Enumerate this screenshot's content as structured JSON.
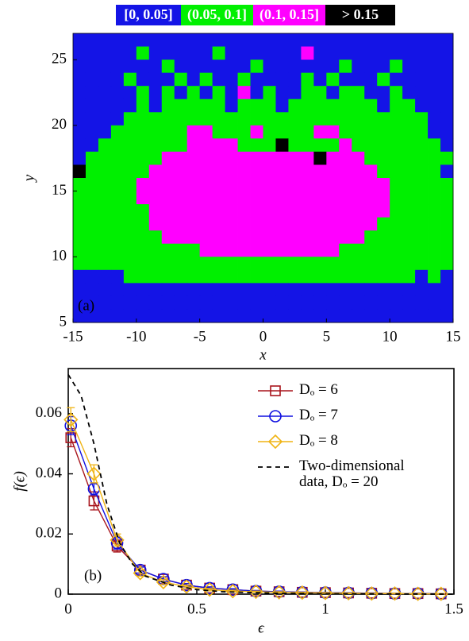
{
  "chart_data": [
    {
      "type": "heatmap",
      "classes": [
        "[0, 0.05]",
        "(0.05, 0.1]",
        "(0.1, 0.15]",
        "> 0.15"
      ],
      "colors": [
        "#1414e6",
        "#00f000",
        "#ff00ff",
        "#000000"
      ],
      "xlabel": "x",
      "ylabel": "y",
      "annotation": "(a)",
      "xlim": [
        -15,
        15
      ],
      "ylim": [
        5,
        27
      ],
      "xticks": [
        -15,
        -10,
        -5,
        0,
        5,
        10,
        15
      ],
      "yticks": [
        5,
        10,
        15,
        20,
        25
      ],
      "z": [
        [
          0,
          0,
          0,
          0,
          0,
          0,
          0,
          0,
          0,
          0,
          0,
          0,
          0,
          0,
          0,
          0,
          0,
          0,
          0,
          0,
          0,
          0,
          0,
          0,
          0,
          0,
          0,
          0,
          0,
          0
        ],
        [
          0,
          0,
          0,
          0,
          0,
          1,
          0,
          0,
          0,
          0,
          0,
          1,
          0,
          0,
          0,
          0,
          0,
          0,
          2,
          0,
          0,
          0,
          0,
          0,
          0,
          0,
          0,
          0,
          0,
          0
        ],
        [
          0,
          0,
          0,
          0,
          0,
          0,
          0,
          1,
          0,
          0,
          0,
          0,
          0,
          0,
          1,
          0,
          0,
          0,
          0,
          0,
          0,
          1,
          0,
          0,
          0,
          1,
          0,
          0,
          0,
          0
        ],
        [
          0,
          0,
          0,
          0,
          1,
          0,
          0,
          0,
          1,
          0,
          1,
          0,
          0,
          1,
          0,
          0,
          0,
          0,
          1,
          0,
          1,
          0,
          0,
          0,
          1,
          0,
          0,
          0,
          0,
          0
        ],
        [
          0,
          0,
          0,
          0,
          0,
          1,
          0,
          1,
          0,
          1,
          0,
          1,
          0,
          2,
          0,
          1,
          0,
          0,
          1,
          1,
          0,
          1,
          1,
          0,
          0,
          1,
          0,
          0,
          0,
          0
        ],
        [
          0,
          0,
          0,
          0,
          0,
          1,
          0,
          1,
          1,
          1,
          1,
          1,
          0,
          1,
          1,
          1,
          0,
          1,
          1,
          1,
          1,
          1,
          1,
          1,
          0,
          1,
          1,
          0,
          0,
          0
        ],
        [
          0,
          0,
          0,
          0,
          1,
          1,
          1,
          1,
          1,
          1,
          1,
          1,
          1,
          1,
          1,
          1,
          1,
          1,
          1,
          1,
          1,
          1,
          1,
          1,
          1,
          1,
          1,
          1,
          0,
          0
        ],
        [
          0,
          0,
          0,
          1,
          1,
          1,
          1,
          1,
          1,
          2,
          2,
          1,
          1,
          1,
          2,
          1,
          1,
          1,
          1,
          2,
          2,
          1,
          1,
          1,
          1,
          1,
          1,
          1,
          0,
          0
        ],
        [
          0,
          0,
          1,
          1,
          1,
          1,
          1,
          1,
          1,
          2,
          2,
          2,
          2,
          1,
          1,
          1,
          3,
          1,
          1,
          1,
          1,
          2,
          1,
          1,
          1,
          1,
          1,
          1,
          1,
          0
        ],
        [
          0,
          1,
          1,
          1,
          1,
          1,
          1,
          2,
          2,
          2,
          2,
          2,
          2,
          2,
          2,
          2,
          2,
          2,
          2,
          3,
          2,
          2,
          2,
          1,
          1,
          1,
          1,
          1,
          1,
          1
        ],
        [
          3,
          1,
          1,
          1,
          1,
          1,
          2,
          2,
          2,
          2,
          2,
          2,
          2,
          2,
          2,
          2,
          2,
          2,
          2,
          2,
          2,
          2,
          2,
          2,
          1,
          1,
          1,
          1,
          1,
          0
        ],
        [
          1,
          1,
          1,
          1,
          1,
          2,
          2,
          2,
          2,
          2,
          2,
          2,
          2,
          2,
          2,
          2,
          2,
          2,
          2,
          2,
          2,
          2,
          2,
          2,
          2,
          1,
          1,
          1,
          1,
          1
        ],
        [
          1,
          1,
          1,
          1,
          1,
          2,
          2,
          2,
          2,
          2,
          2,
          2,
          2,
          2,
          2,
          2,
          2,
          2,
          2,
          2,
          2,
          2,
          2,
          2,
          2,
          1,
          1,
          1,
          1,
          1
        ],
        [
          1,
          1,
          1,
          1,
          1,
          1,
          2,
          2,
          2,
          2,
          2,
          2,
          2,
          2,
          2,
          2,
          2,
          2,
          2,
          2,
          2,
          2,
          2,
          2,
          2,
          1,
          1,
          1,
          1,
          1
        ],
        [
          1,
          1,
          1,
          1,
          1,
          1,
          2,
          2,
          2,
          2,
          2,
          2,
          2,
          2,
          2,
          2,
          2,
          2,
          2,
          2,
          2,
          2,
          2,
          2,
          1,
          1,
          1,
          1,
          1,
          1
        ],
        [
          1,
          1,
          1,
          1,
          1,
          1,
          1,
          2,
          2,
          2,
          2,
          2,
          2,
          2,
          2,
          2,
          2,
          2,
          2,
          2,
          2,
          2,
          2,
          1,
          1,
          1,
          1,
          1,
          1,
          1
        ],
        [
          1,
          1,
          1,
          1,
          1,
          1,
          1,
          1,
          1,
          1,
          2,
          2,
          2,
          2,
          2,
          2,
          2,
          2,
          2,
          2,
          2,
          1,
          1,
          1,
          1,
          1,
          1,
          1,
          1,
          1
        ],
        [
          1,
          1,
          1,
          1,
          1,
          1,
          1,
          1,
          1,
          1,
          1,
          1,
          1,
          1,
          1,
          1,
          1,
          1,
          1,
          1,
          1,
          1,
          1,
          1,
          1,
          1,
          1,
          1,
          1,
          1
        ],
        [
          0,
          0,
          0,
          0,
          1,
          1,
          1,
          1,
          1,
          1,
          1,
          1,
          1,
          1,
          1,
          1,
          1,
          1,
          1,
          1,
          1,
          1,
          1,
          1,
          1,
          1,
          1,
          0,
          1,
          0
        ],
        [
          0,
          0,
          0,
          0,
          0,
          0,
          0,
          0,
          0,
          0,
          0,
          0,
          0,
          0,
          0,
          0,
          0,
          0,
          0,
          0,
          0,
          0,
          0,
          0,
          0,
          0,
          0,
          0,
          0,
          0
        ],
        [
          0,
          0,
          0,
          0,
          0,
          0,
          0,
          0,
          0,
          0,
          0,
          0,
          0,
          0,
          0,
          0,
          0,
          0,
          0,
          0,
          0,
          0,
          0,
          0,
          0,
          0,
          0,
          0,
          0,
          0
        ],
        [
          0,
          0,
          0,
          0,
          0,
          0,
          0,
          0,
          0,
          0,
          0,
          0,
          0,
          0,
          0,
          0,
          0,
          0,
          0,
          0,
          0,
          0,
          0,
          0,
          0,
          0,
          0,
          0,
          0,
          0
        ]
      ]
    },
    {
      "type": "line",
      "xlabel": "ϵ",
      "ylabel": "f(ϵ)",
      "annotation": "(b)",
      "xlim": [
        0,
        1.5
      ],
      "ylim": [
        0,
        0.075
      ],
      "xticks": [
        0,
        0.5,
        1,
        1.5
      ],
      "yticks": [
        0,
        0.02,
        0.04,
        0.06
      ],
      "legend": "upper right",
      "series": [
        {
          "name": "Dₒ = 6",
          "color": "#a8141c",
          "marker": "square",
          "x": [
            0.01,
            0.1,
            0.19,
            0.28,
            0.37,
            0.46,
            0.55,
            0.64,
            0.73,
            0.82,
            0.91,
            1.0,
            1.09,
            1.18,
            1.27,
            1.36,
            1.45
          ],
          "values": [
            0.052,
            0.031,
            0.016,
            0.008,
            0.005,
            0.003,
            0.002,
            0.0015,
            0.001,
            0.0008,
            0.0006,
            0.0005,
            0.0004,
            0.0003,
            0.0002,
            0.0002,
            0.0001
          ],
          "errors": [
            0.003,
            0.003,
            0.002,
            0.001,
            0.0008,
            0.0005,
            0.0004,
            0.0003,
            0.0002,
            0.0002,
            0.0001,
            0.0001,
            0.0001,
            0.0001,
            0.0001,
            0.0001,
            0.0001
          ]
        },
        {
          "name": "Dₒ = 7",
          "color": "#1010e0",
          "marker": "circle",
          "x": [
            0.01,
            0.1,
            0.19,
            0.28,
            0.37,
            0.46,
            0.55,
            0.64,
            0.73,
            0.82,
            0.91,
            1.0,
            1.09,
            1.18,
            1.27,
            1.36,
            1.45
          ],
          "values": [
            0.056,
            0.035,
            0.017,
            0.008,
            0.005,
            0.003,
            0.002,
            0.0015,
            0.001,
            0.0008,
            0.0006,
            0.0005,
            0.0004,
            0.0003,
            0.0002,
            0.0002,
            0.0001
          ],
          "errors": [
            0.003,
            0.002,
            0.002,
            0.001,
            0.0008,
            0.0005,
            0.0004,
            0.0003,
            0.0002,
            0.0002,
            0.0001,
            0.0001,
            0.0001,
            0.0001,
            0.0001,
            0.0001,
            0.0001
          ]
        },
        {
          "name": "Dₒ = 8",
          "color": "#f0b414",
          "marker": "diamond",
          "x": [
            0.01,
            0.1,
            0.19,
            0.28,
            0.37,
            0.46,
            0.55,
            0.64,
            0.73,
            0.82,
            0.91,
            1.0,
            1.09,
            1.18,
            1.27,
            1.36,
            1.45
          ],
          "values": [
            0.058,
            0.04,
            0.018,
            0.007,
            0.004,
            0.0025,
            0.0015,
            0.001,
            0.0008,
            0.0006,
            0.0005,
            0.0004,
            0.0003,
            0.0002,
            0.0002,
            0.0001,
            0.0001
          ],
          "errors": [
            0.004,
            0.003,
            0.002,
            0.001,
            0.0008,
            0.0005,
            0.0004,
            0.0003,
            0.0002,
            0.0002,
            0.0001,
            0.0001,
            0.0001,
            0.0001,
            0.0001,
            0.0001,
            0.0001
          ]
        },
        {
          "name": "Two-dimensional data, Dₒ = 20",
          "color": "#000000",
          "dash": true,
          "x": [
            0,
            0.05,
            0.1,
            0.15,
            0.2,
            0.25,
            0.3,
            0.4,
            0.5,
            0.6,
            0.8,
            1.0,
            1.5
          ],
          "values": [
            0.073,
            0.066,
            0.05,
            0.03,
            0.017,
            0.01,
            0.006,
            0.003,
            0.0015,
            0.0008,
            0.0003,
            0.0001,
            0
          ]
        }
      ]
    }
  ]
}
